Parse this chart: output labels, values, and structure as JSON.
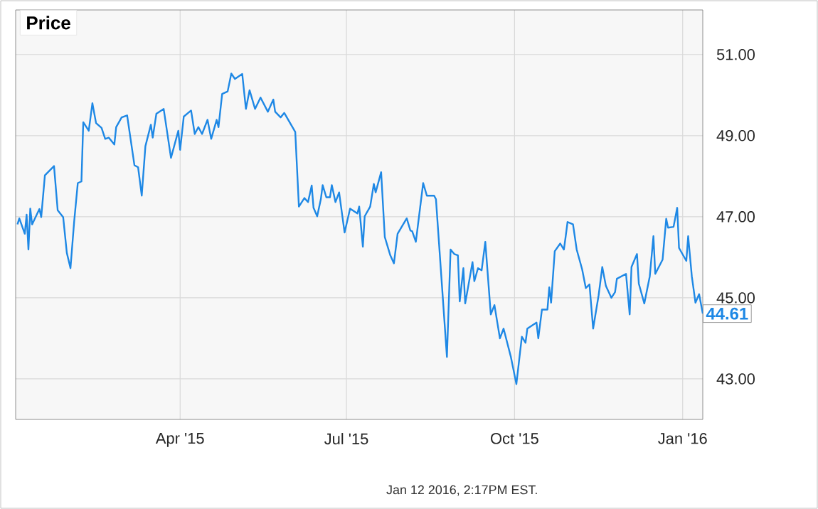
{
  "chart_data": {
    "type": "line",
    "title": "Price",
    "x": [
      "2015-01-02",
      "2015-01-03",
      "2015-01-06",
      "2015-01-07",
      "2015-01-08",
      "2015-01-09",
      "2015-01-10",
      "2015-01-14",
      "2015-01-15",
      "2015-01-17",
      "2015-01-22",
      "2015-01-24",
      "2015-01-27",
      "2015-01-29",
      "2015-01-31",
      "2015-02-02",
      "2015-02-04",
      "2015-02-06",
      "2015-02-07",
      "2015-02-10",
      "2015-02-12",
      "2015-02-14",
      "2015-02-17",
      "2015-02-19",
      "2015-02-21",
      "2015-02-24",
      "2015-02-25",
      "2015-02-28",
      "2015-03-03",
      "2015-03-07",
      "2015-03-09",
      "2015-03-11",
      "2015-03-13",
      "2015-03-16",
      "2015-03-17",
      "2015-03-19",
      "2015-03-23",
      "2015-03-27",
      "2015-03-31",
      "2015-04-01",
      "2015-04-03",
      "2015-04-07",
      "2015-04-09",
      "2015-04-11",
      "2015-04-13",
      "2015-04-16",
      "2015-04-18",
      "2015-04-21",
      "2015-04-22",
      "2015-04-24",
      "2015-04-27",
      "2015-04-29",
      "2015-05-01",
      "2015-05-05",
      "2015-05-07",
      "2015-05-09",
      "2015-05-12",
      "2015-05-15",
      "2015-05-19",
      "2015-05-22",
      "2015-05-23",
      "2015-05-26",
      "2015-05-28",
      "2015-06-03",
      "2015-06-05",
      "2015-06-08",
      "2015-06-10",
      "2015-06-12",
      "2015-06-13",
      "2015-06-15",
      "2015-06-17",
      "2015-06-18",
      "2015-06-20",
      "2015-06-22",
      "2015-06-23",
      "2015-06-25",
      "2015-06-27",
      "2015-06-30",
      "2015-07-03",
      "2015-07-07",
      "2015-07-08",
      "2015-07-10",
      "2015-07-11",
      "2015-07-14",
      "2015-07-16",
      "2015-07-17",
      "2015-07-20",
      "2015-07-22",
      "2015-07-25",
      "2015-07-27",
      "2015-07-29",
      "2015-08-03",
      "2015-08-05",
      "2015-08-06",
      "2015-08-08",
      "2015-08-12",
      "2015-08-14",
      "2015-08-18",
      "2015-08-19",
      "2015-08-25",
      "2015-08-27",
      "2015-08-29",
      "2015-08-31",
      "2015-09-01",
      "2015-09-03",
      "2015-09-04",
      "2015-09-08",
      "2015-09-09",
      "2015-09-11",
      "2015-09-13",
      "2015-09-15",
      "2015-09-18",
      "2015-09-20",
      "2015-09-23",
      "2015-09-25",
      "2015-09-29",
      "2015-10-02",
      "2015-10-05",
      "2015-10-07",
      "2015-10-08",
      "2015-10-13",
      "2015-10-14",
      "2015-10-16",
      "2015-10-19",
      "2015-10-20",
      "2015-10-21",
      "2015-10-23",
      "2015-10-26",
      "2015-10-28",
      "2015-10-29",
      "2015-10-30",
      "2015-11-02",
      "2015-11-04",
      "2015-11-07",
      "2015-11-09",
      "2015-11-11",
      "2015-11-13",
      "2015-11-16",
      "2015-11-18",
      "2015-11-20",
      "2015-11-23",
      "2015-11-25",
      "2015-11-26",
      "2015-12-01",
      "2015-12-03",
      "2015-12-04",
      "2015-12-07",
      "2015-12-08",
      "2015-12-11",
      "2015-12-14",
      "2015-12-16",
      "2015-12-17",
      "2015-12-21",
      "2015-12-23",
      "2015-12-24",
      "2015-12-27",
      "2015-12-29",
      "2015-12-30",
      "2016-01-03",
      "2016-01-04",
      "2016-01-06",
      "2016-01-08",
      "2016-01-10",
      "2016-01-12"
    ],
    "series": [
      {
        "color": "#1e88e5",
        "values": [
          46.81,
          46.96,
          46.58,
          47.05,
          46.19,
          47.2,
          46.81,
          47.19,
          46.99,
          48.02,
          48.25,
          47.16,
          46.99,
          46.11,
          45.73,
          46.87,
          47.83,
          47.87,
          49.33,
          49.12,
          49.8,
          49.31,
          49.19,
          48.92,
          48.95,
          48.78,
          49.21,
          49.45,
          49.5,
          48.27,
          48.22,
          47.52,
          48.74,
          49.27,
          48.95,
          49.54,
          49.66,
          48.45,
          49.12,
          48.65,
          49.47,
          49.62,
          49.04,
          49.21,
          49.04,
          49.39,
          48.92,
          49.39,
          49.21,
          50.03,
          50.09,
          50.53,
          50.4,
          50.52,
          49.66,
          50.12,
          49.66,
          49.94,
          49.59,
          49.89,
          49.59,
          49.45,
          49.56,
          49.09,
          47.25,
          47.46,
          47.36,
          47.77,
          47.22,
          47.01,
          47.43,
          47.78,
          47.48,
          47.48,
          47.78,
          47.36,
          47.6,
          46.61,
          47.2,
          47.08,
          47.25,
          46.26,
          47.01,
          47.25,
          47.81,
          47.6,
          48.1,
          46.5,
          46.05,
          45.85,
          46.58,
          46.96,
          46.66,
          46.64,
          46.38,
          47.83,
          47.52,
          47.52,
          47.43,
          43.54,
          46.19,
          46.08,
          46.05,
          44.91,
          45.73,
          44.86,
          45.88,
          45.41,
          45.73,
          45.68,
          46.38,
          44.59,
          44.82,
          44.0,
          44.24,
          43.54,
          42.87,
          44.04,
          43.89,
          44.24,
          44.39,
          44.0,
          44.71,
          44.71,
          45.26,
          44.88,
          46.15,
          46.34,
          46.19,
          46.52,
          46.87,
          46.81,
          46.19,
          45.7,
          45.24,
          45.33,
          44.24,
          45.06,
          45.76,
          45.29,
          45.0,
          45.14,
          45.47,
          45.59,
          44.59,
          45.76,
          46.08,
          45.35,
          44.86,
          45.53,
          46.52,
          45.59,
          45.94,
          46.95,
          46.73,
          46.75,
          47.22,
          46.23,
          45.91,
          46.52,
          45.53,
          44.88,
          45.09,
          44.61
        ]
      }
    ],
    "xlim": [
      "2015-01-01",
      "2016-01-12"
    ],
    "xticks": [
      {
        "value": "2015-04-01",
        "label": "Apr '15"
      },
      {
        "value": "2015-07-01",
        "label": "Jul '15"
      },
      {
        "value": "2015-10-01",
        "label": "Oct '15"
      },
      {
        "value": "2016-01-01",
        "label": "Jan '16"
      }
    ],
    "ylim": [
      42,
      52.1
    ],
    "yticks": [
      {
        "value": 43,
        "label": "43.00"
      },
      {
        "value": 45,
        "label": "45.00"
      },
      {
        "value": 47,
        "label": "47.00"
      },
      {
        "value": 49,
        "label": "49.00"
      },
      {
        "value": 51,
        "label": "51.00"
      }
    ],
    "grid": true,
    "marker": "none",
    "line_style": "solid",
    "annotations": [
      {
        "text": "44.61",
        "x": "2016-01-12",
        "y": 44.61
      },
      "Jan 12 2016, 2:17PM EST."
    ]
  }
}
